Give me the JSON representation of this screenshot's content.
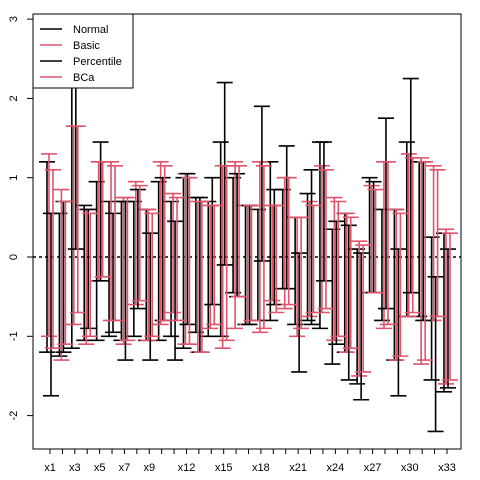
{
  "chart_data": {
    "type": "errorbar",
    "title": "",
    "xlabel": "",
    "ylabel": "",
    "ylim": [
      -2.5,
      3.0
    ],
    "yticks": [
      -2,
      -1,
      0,
      1,
      2,
      3
    ],
    "reference_line": 0,
    "grid": false,
    "legend_position": "top-left",
    "categories": [
      "x1",
      "x2",
      "x3",
      "x4",
      "x5",
      "x6",
      "x7",
      "x8",
      "x9",
      "x10",
      "x11",
      "x12",
      "x13",
      "x14",
      "x15",
      "x16",
      "x17",
      "x18",
      "x19",
      "x20",
      "x21",
      "x22",
      "x23",
      "x24",
      "x25",
      "x26",
      "x27",
      "x28",
      "x29",
      "x30",
      "x31",
      "x32",
      "x33"
    ],
    "xtick_labels": [
      "x1",
      "x3",
      "x5",
      "x7",
      "x9",
      "x12",
      "x15",
      "x18",
      "x21",
      "x24",
      "x27",
      "x30",
      "x33"
    ],
    "series": [
      {
        "name": "Normal",
        "color": "#000000",
        "intervals": [
          [
            -1.2,
            1.2
          ],
          [
            -1.25,
            0.55
          ],
          [
            -1.15,
            2.75
          ],
          [
            -1.05,
            0.65
          ],
          [
            -1.05,
            0.95
          ],
          [
            -1.0,
            0.7
          ],
          [
            -1.05,
            0.7
          ],
          [
            -1.0,
            0.7
          ],
          [
            -1.05,
            0.6
          ],
          [
            -1.05,
            0.95
          ],
          [
            -1.0,
            0.7
          ],
          [
            -1.15,
            1.0
          ],
          [
            -0.95,
            0.75
          ],
          [
            -1.0,
            0.7
          ],
          [
            -1.0,
            1.45
          ],
          [
            -0.45,
            1.0
          ],
          [
            -0.85,
            0.65
          ],
          [
            -0.8,
            0.6
          ],
          [
            -0.8,
            1.2
          ],
          [
            -0.4,
            0.85
          ],
          [
            -0.85,
            0.5
          ],
          [
            -0.8,
            0.8
          ],
          [
            -0.9,
            1.45
          ],
          [
            -1.35,
            0.35
          ],
          [
            -1.2,
            0.55
          ],
          [
            -1.6,
            0.1
          ],
          [
            -0.45,
            1.0
          ],
          [
            -0.8,
            0.6
          ],
          [
            -1.3,
            0.6
          ],
          [
            -0.75,
            1.45
          ],
          [
            -0.75,
            1.2
          ],
          [
            -1.55,
            0.25
          ],
          [
            -1.7,
            0.3
          ]
        ]
      },
      {
        "name": "Basic",
        "color": "#df536b",
        "intervals": [
          [
            -1.0,
            1.3
          ],
          [
            -1.3,
            0.85
          ],
          [
            -0.85,
            1.65
          ],
          [
            -1.1,
            0.6
          ],
          [
            -0.3,
            1.2
          ],
          [
            -0.8,
            1.2
          ],
          [
            -1.1,
            0.75
          ],
          [
            -0.6,
            0.95
          ],
          [
            -1.05,
            0.6
          ],
          [
            -0.85,
            1.2
          ],
          [
            -0.7,
            0.8
          ],
          [
            -1.1,
            1.05
          ],
          [
            -1.2,
            0.7
          ],
          [
            -0.9,
            0.65
          ],
          [
            -1.15,
            1.15
          ],
          [
            -0.9,
            1.2
          ],
          [
            -0.85,
            0.65
          ],
          [
            -0.95,
            1.2
          ],
          [
            -0.55,
            0.65
          ],
          [
            -0.65,
            1.0
          ],
          [
            -1.0,
            0.5
          ],
          [
            -0.75,
            0.7
          ],
          [
            -0.7,
            1.15
          ],
          [
            -1.05,
            0.75
          ],
          [
            -1.2,
            0.55
          ],
          [
            -1.5,
            0.2
          ],
          [
            -0.45,
            0.9
          ],
          [
            -0.9,
            1.2
          ],
          [
            -1.3,
            0.6
          ],
          [
            -0.75,
            1.3
          ],
          [
            -1.35,
            1.25
          ],
          [
            -0.8,
            1.15
          ],
          [
            -1.6,
            0.35
          ]
        ]
      },
      {
        "name": "Percentile",
        "color": "#000000",
        "intervals": [
          [
            -1.75,
            0.55
          ],
          [
            -1.2,
            0.7
          ],
          [
            0.1,
            2.6
          ],
          [
            -0.9,
            0.6
          ],
          [
            -0.3,
            1.45
          ],
          [
            -0.95,
            0.55
          ],
          [
            -1.3,
            0.7
          ],
          [
            -0.65,
            0.85
          ],
          [
            -1.3,
            0.3
          ],
          [
            -0.8,
            1.0
          ],
          [
            -1.3,
            0.45
          ],
          [
            -0.85,
            1.05
          ],
          [
            -1.2,
            0.75
          ],
          [
            -0.6,
            1.0
          ],
          [
            -0.1,
            2.2
          ],
          [
            -0.5,
            1.05
          ],
          [
            -0.85,
            0.65
          ],
          [
            -0.05,
            1.9
          ],
          [
            -0.6,
            0.85
          ],
          [
            -0.4,
            1.4
          ],
          [
            -1.45,
            0.05
          ],
          [
            -0.85,
            1.1
          ],
          [
            -0.3,
            1.45
          ],
          [
            -1.1,
            0.45
          ],
          [
            -1.55,
            0.4
          ],
          [
            -1.8,
            0.05
          ],
          [
            -0.45,
            0.95
          ],
          [
            -0.65,
            1.75
          ],
          [
            -1.75,
            0.1
          ],
          [
            -0.45,
            2.25
          ],
          [
            -0.8,
            1.2
          ],
          [
            -2.2,
            -0.25
          ],
          [
            -1.65,
            0.1
          ]
        ]
      },
      {
        "name": "BCa",
        "color": "#df536b",
        "intervals": [
          [
            -1.15,
            1.1
          ],
          [
            -1.1,
            0.7
          ],
          [
            -0.7,
            1.65
          ],
          [
            -1.0,
            0.55
          ],
          [
            -0.25,
            1.2
          ],
          [
            -0.8,
            1.15
          ],
          [
            -1.05,
            0.75
          ],
          [
            -0.55,
            0.9
          ],
          [
            -1.0,
            0.55
          ],
          [
            -0.8,
            1.15
          ],
          [
            -0.8,
            0.75
          ],
          [
            -1.1,
            1.0
          ],
          [
            -1.2,
            0.7
          ],
          [
            -0.85,
            0.65
          ],
          [
            -1.05,
            1.15
          ],
          [
            -0.5,
            1.15
          ],
          [
            -0.8,
            0.65
          ],
          [
            -0.9,
            1.15
          ],
          [
            -0.7,
            0.65
          ],
          [
            -0.6,
            1.0
          ],
          [
            -0.9,
            0.5
          ],
          [
            -0.7,
            0.65
          ],
          [
            -0.65,
            1.1
          ],
          [
            -1.0,
            0.7
          ],
          [
            -1.15,
            0.5
          ],
          [
            -1.45,
            0.15
          ],
          [
            -0.45,
            0.85
          ],
          [
            -0.85,
            1.2
          ],
          [
            -1.25,
            0.55
          ],
          [
            -0.7,
            1.25
          ],
          [
            -1.3,
            1.2
          ],
          [
            -0.75,
            1.1
          ],
          [
            -1.55,
            0.3
          ]
        ]
      }
    ]
  }
}
